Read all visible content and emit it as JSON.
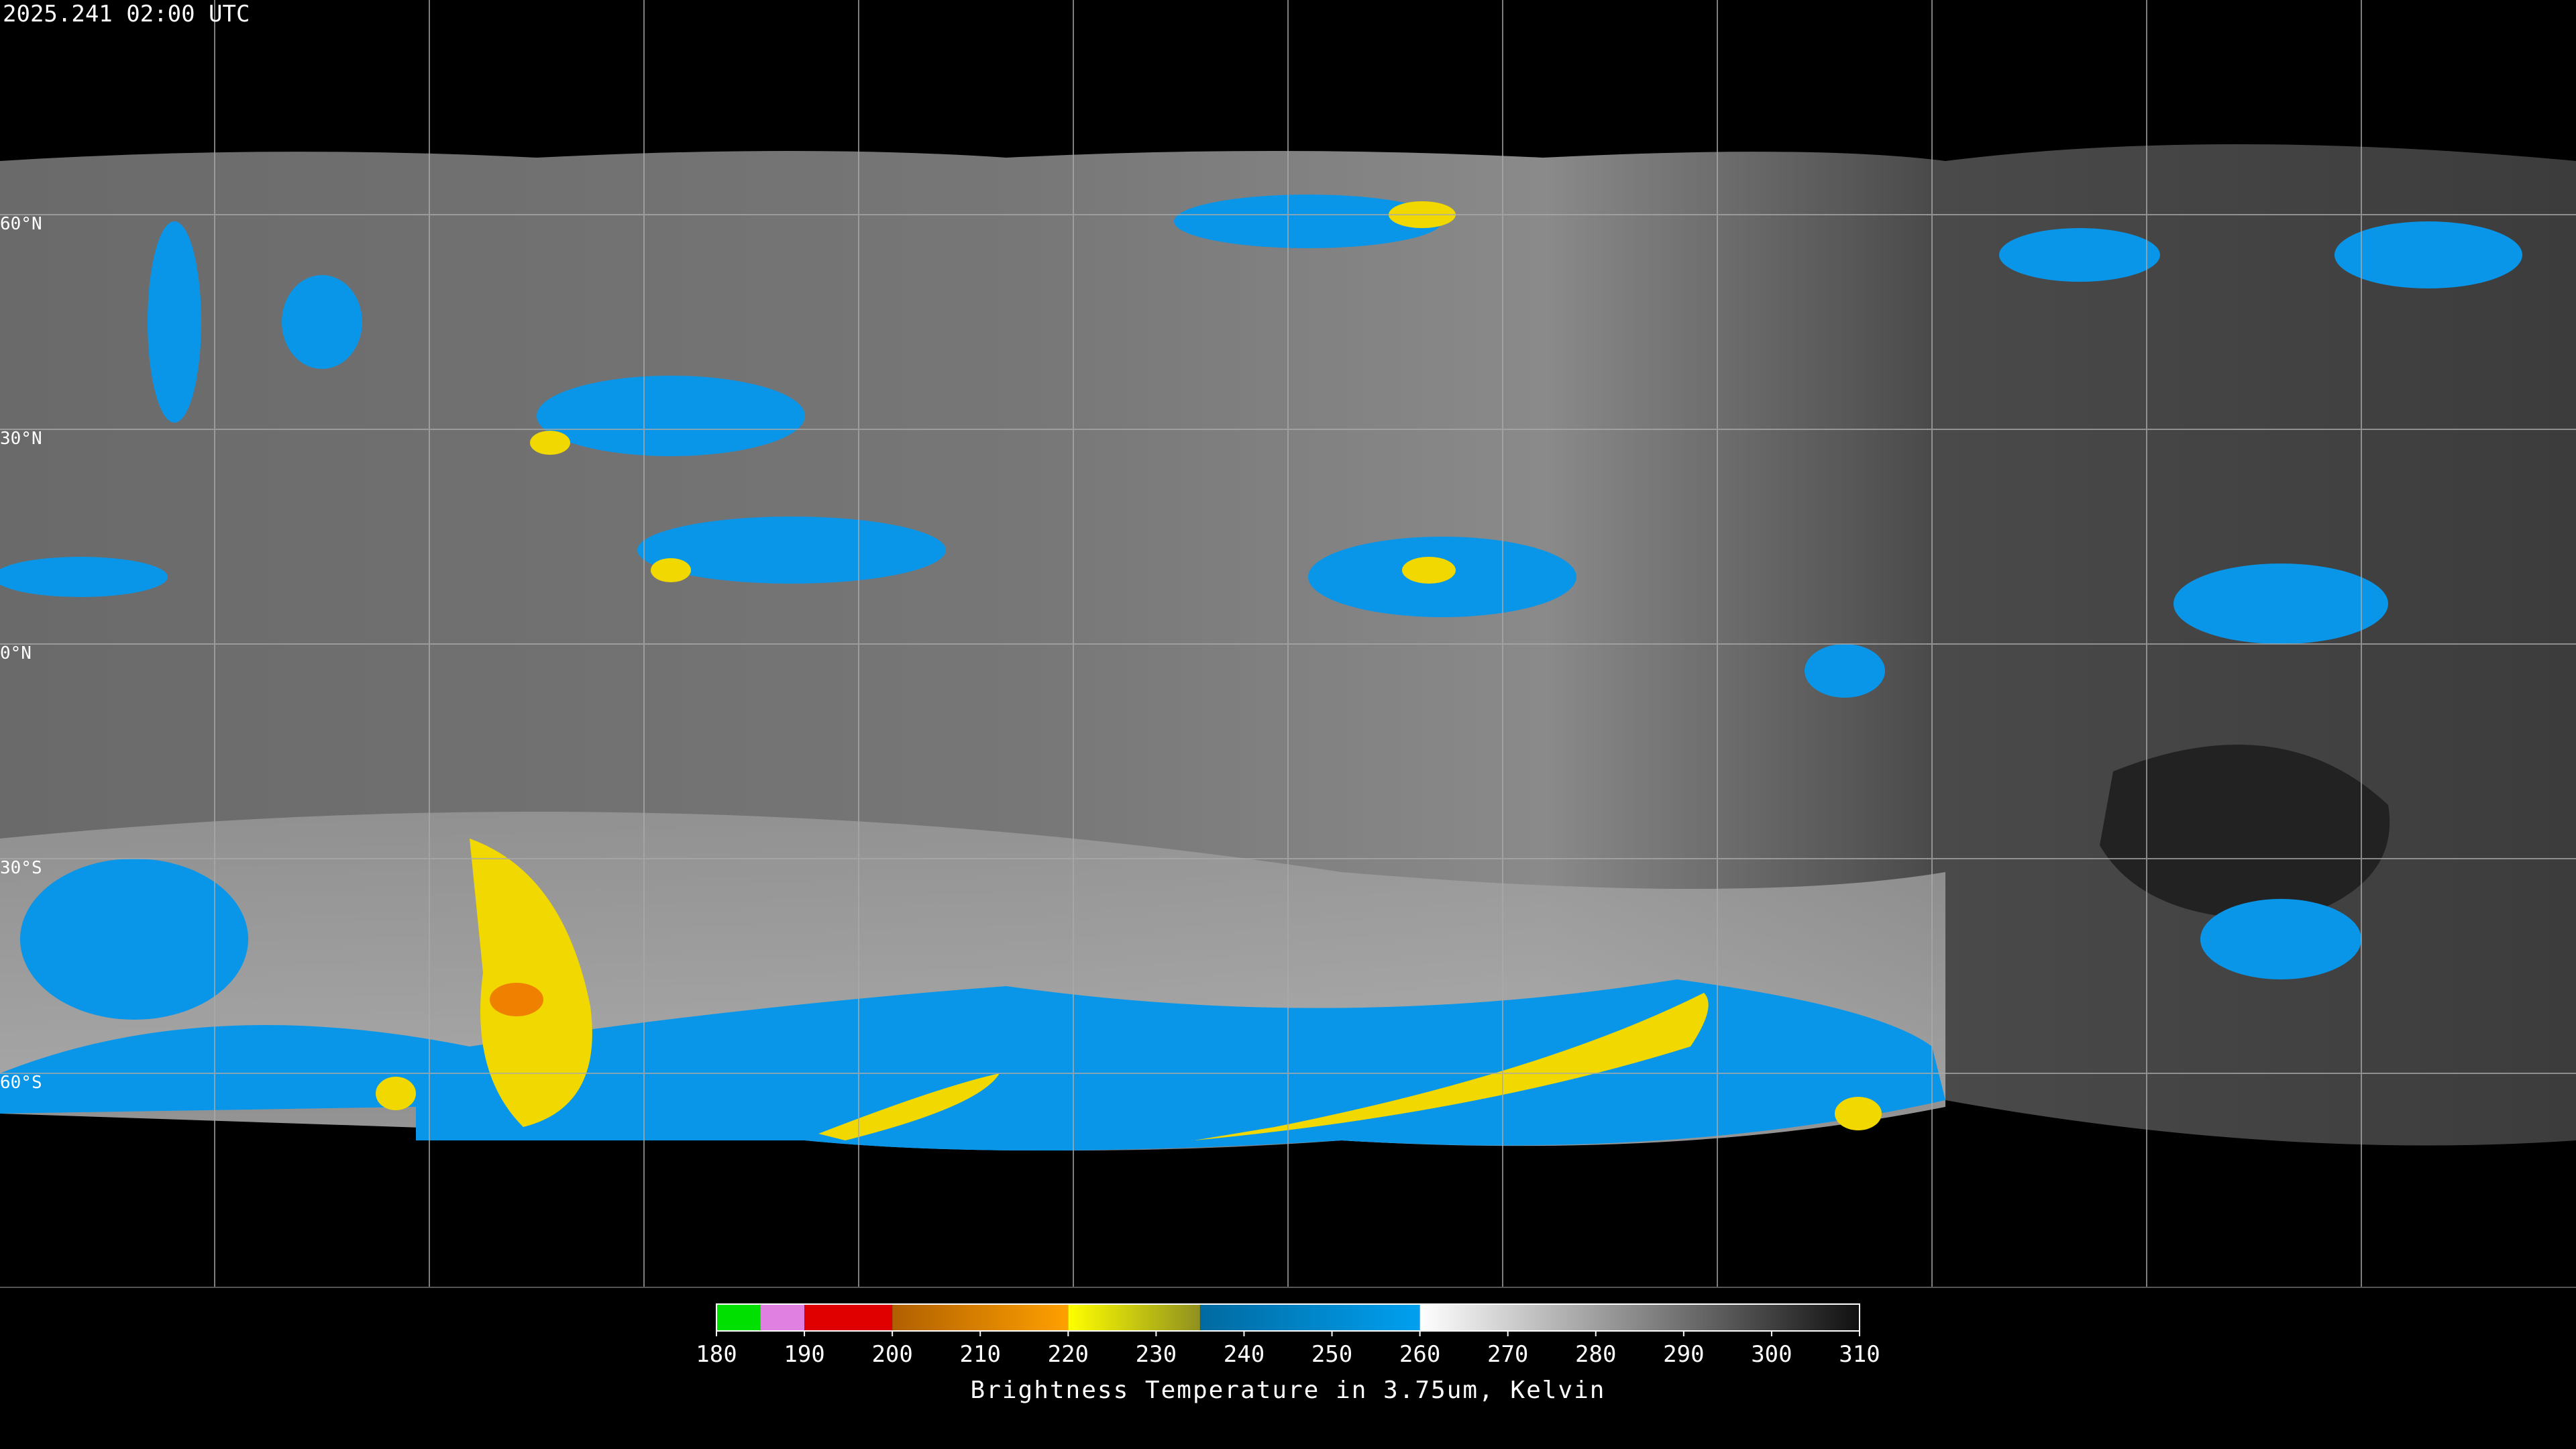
{
  "map": {
    "timestamp": "2025.241 02:00 UTC",
    "latitude_labels": [
      "60°N",
      "30°N",
      "0°N",
      "30°S",
      "60°S"
    ],
    "colorbar": {
      "title": "Brightness Temperature in 3.75um, Kelvin",
      "range": [
        180,
        310
      ],
      "ticks": [
        180,
        190,
        200,
        210,
        220,
        230,
        240,
        250,
        260,
        270,
        280,
        290,
        300,
        310
      ],
      "segments": [
        {
          "from": 180,
          "to": 185,
          "colors": [
            "#00e000",
            "#00e000"
          ]
        },
        {
          "from": 185,
          "to": 190,
          "colors": [
            "#e080e0",
            "#e080e0"
          ]
        },
        {
          "from": 190,
          "to": 200,
          "colors": [
            "#e00000",
            "#e00000"
          ]
        },
        {
          "from": 200,
          "to": 220,
          "colors": [
            "#b06000",
            "#ffa000"
          ]
        },
        {
          "from": 220,
          "to": 235,
          "colors": [
            "#ffff00",
            "#909020"
          ]
        },
        {
          "from": 235,
          "to": 260,
          "colors": [
            "#006aa0",
            "#00a0f0"
          ]
        },
        {
          "from": 260,
          "to": 310,
          "colors": [
            "#ffffff",
            "#101010"
          ]
        }
      ]
    }
  }
}
